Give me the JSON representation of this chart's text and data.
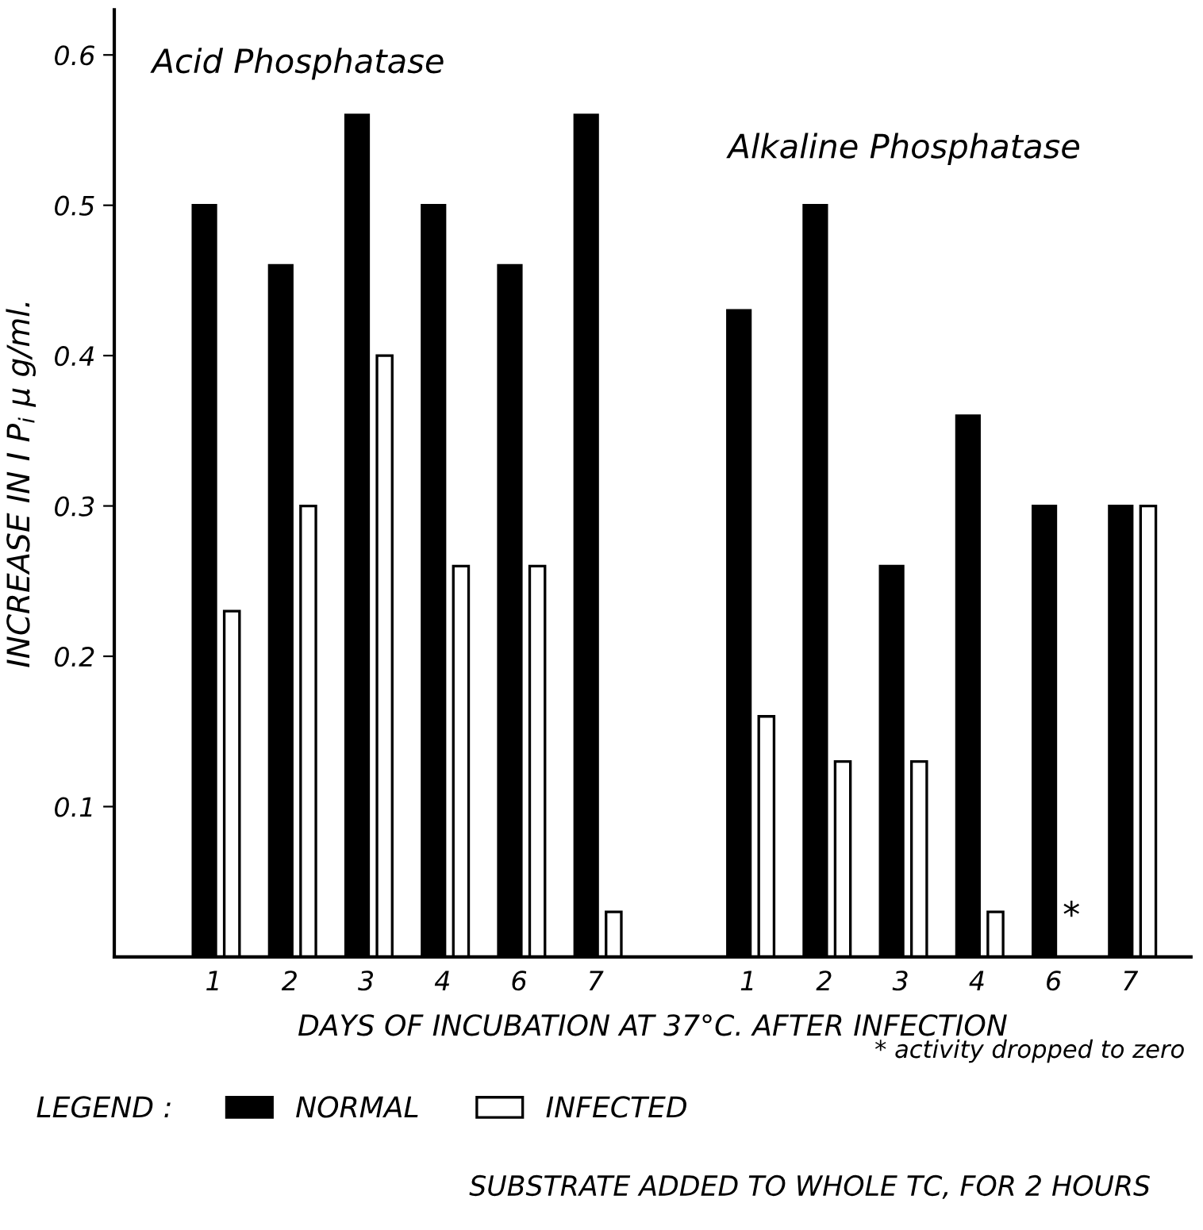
{
  "chart_data": {
    "type": "bar",
    "ylabel": "INCREASE IN I P$_{i}$ µ g/ml.",
    "xlabel": "DAYS OF INCUBATION AT 37°C. AFTER INFECTION",
    "legend_title": "LEGEND :",
    "categories": [
      "1",
      "2",
      "3",
      "4",
      "6",
      "7",
      null,
      "1",
      "2",
      "3",
      "4",
      "6",
      "7"
    ],
    "series": [
      {
        "name": "NORMAL",
        "color": "#000000",
        "values": [
          0.5,
          0.46,
          0.56,
          0.5,
          0.46,
          0.56,
          null,
          0.43,
          0.5,
          0.26,
          0.36,
          0.3,
          0.3
        ]
      },
      {
        "name": "INFECTED",
        "color": "#ffffff",
        "values": [
          0.23,
          0.3,
          0.4,
          0.26,
          0.26,
          0.03,
          null,
          0.16,
          0.13,
          0.13,
          0.03,
          null,
          0.3
        ]
      }
    ],
    "ylim": [
      0,
      0.63
    ],
    "yticks": [
      0.1,
      0.2,
      0.3,
      0.4,
      0.5,
      0.6
    ],
    "grid": false,
    "legend": "bottom",
    "annotations": [
      "Acid Phosphatase",
      "Alkaline Phosphatase",
      "*",
      "* activity dropped to zero",
      "SUBSTRATE ADDED TO WHOLE TC, FOR 2 HOURS"
    ]
  }
}
